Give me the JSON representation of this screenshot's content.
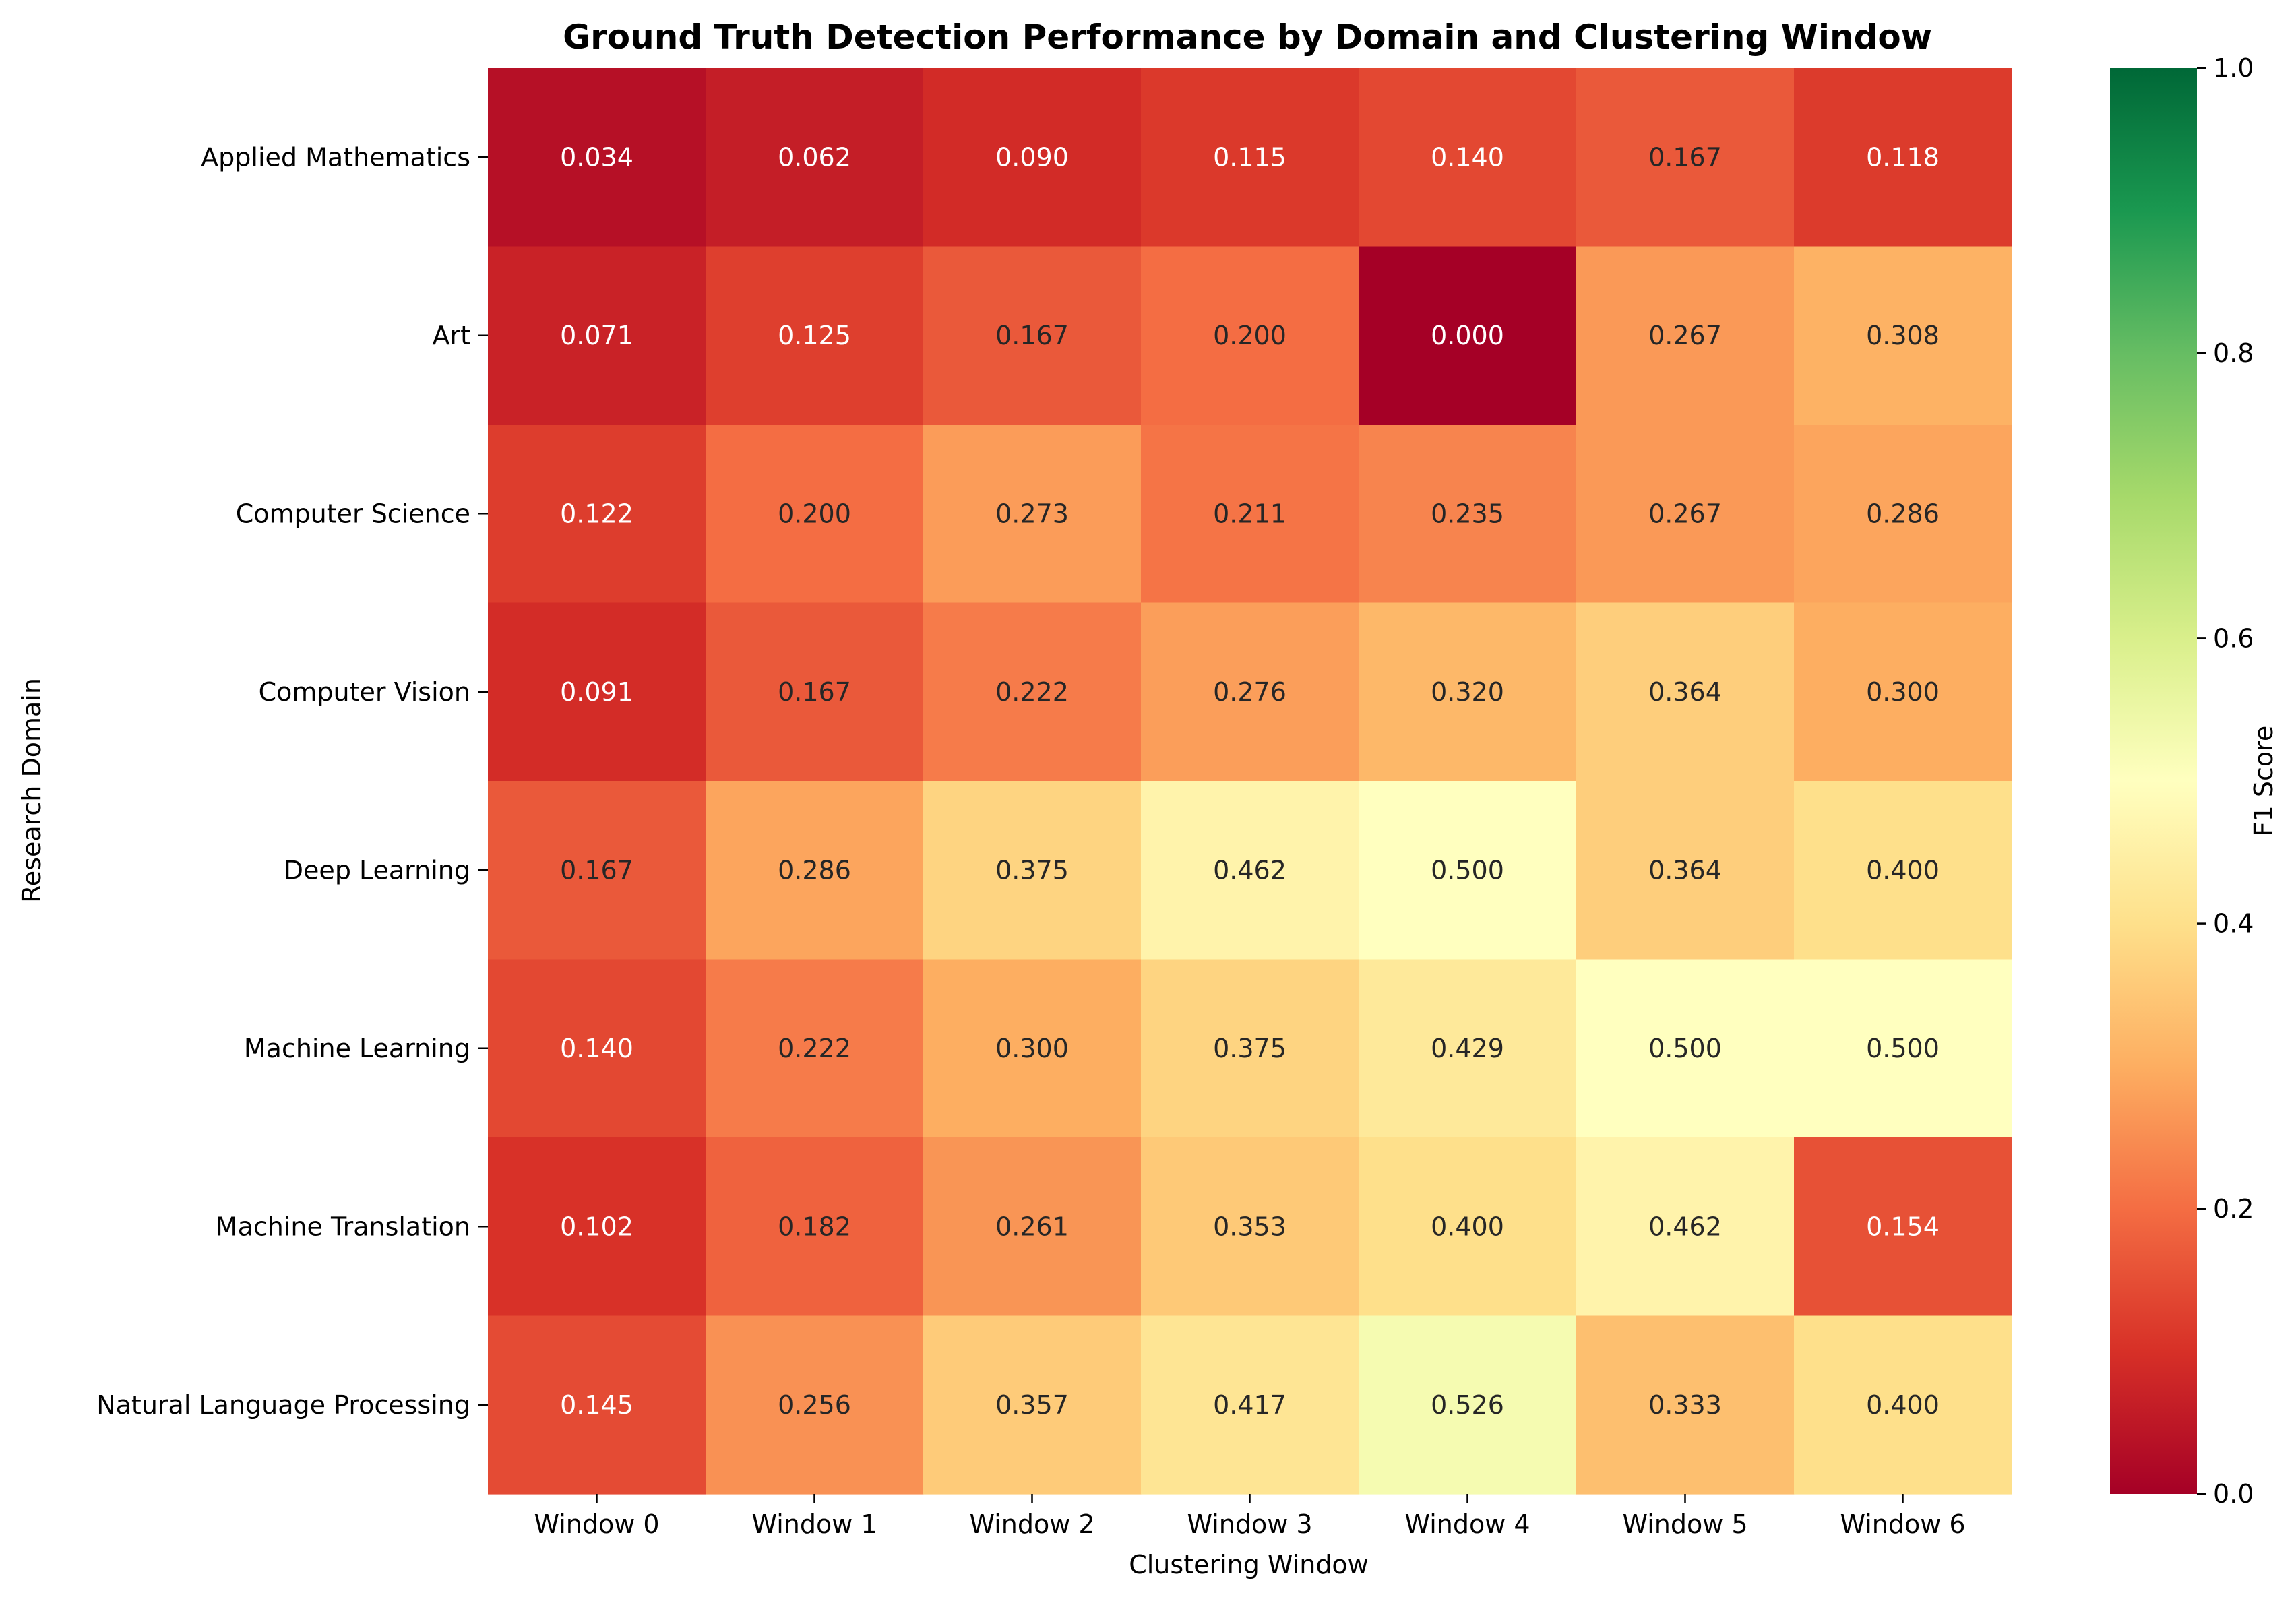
{
  "chart_data": {
    "type": "heatmap",
    "title": "Ground Truth Detection Performance by Domain and Clustering Window",
    "xlabel": "Clustering Window",
    "ylabel": "Research Domain",
    "colorbar_label": "F1 Score",
    "colormap": "RdYlGn",
    "vmin": 0.0,
    "vmax": 1.0,
    "colorbar_ticks": [
      "0.0",
      "0.2",
      "0.4",
      "0.6",
      "0.8",
      "1.0"
    ],
    "x_categories": [
      "Window 0",
      "Window 1",
      "Window 2",
      "Window 3",
      "Window 4",
      "Window 5",
      "Window 6"
    ],
    "y_categories": [
      "Applied Mathematics",
      "Art",
      "Computer Science",
      "Computer Vision",
      "Deep Learning",
      "Machine Learning",
      "Machine Translation",
      "Natural Language Processing"
    ],
    "values": [
      [
        0.034,
        0.062,
        0.09,
        0.115,
        0.14,
        0.167,
        0.118
      ],
      [
        0.071,
        0.125,
        0.167,
        0.2,
        0.0,
        0.267,
        0.308
      ],
      [
        0.122,
        0.2,
        0.273,
        0.211,
        0.235,
        0.267,
        0.286
      ],
      [
        0.091,
        0.167,
        0.222,
        0.276,
        0.32,
        0.364,
        0.3
      ],
      [
        0.167,
        0.286,
        0.375,
        0.462,
        0.5,
        0.364,
        0.4
      ],
      [
        0.14,
        0.222,
        0.3,
        0.375,
        0.429,
        0.5,
        0.5
      ],
      [
        0.102,
        0.182,
        0.261,
        0.353,
        0.4,
        0.462,
        0.154
      ],
      [
        0.145,
        0.256,
        0.357,
        0.417,
        0.526,
        0.333,
        0.4
      ]
    ],
    "grid": false
  }
}
